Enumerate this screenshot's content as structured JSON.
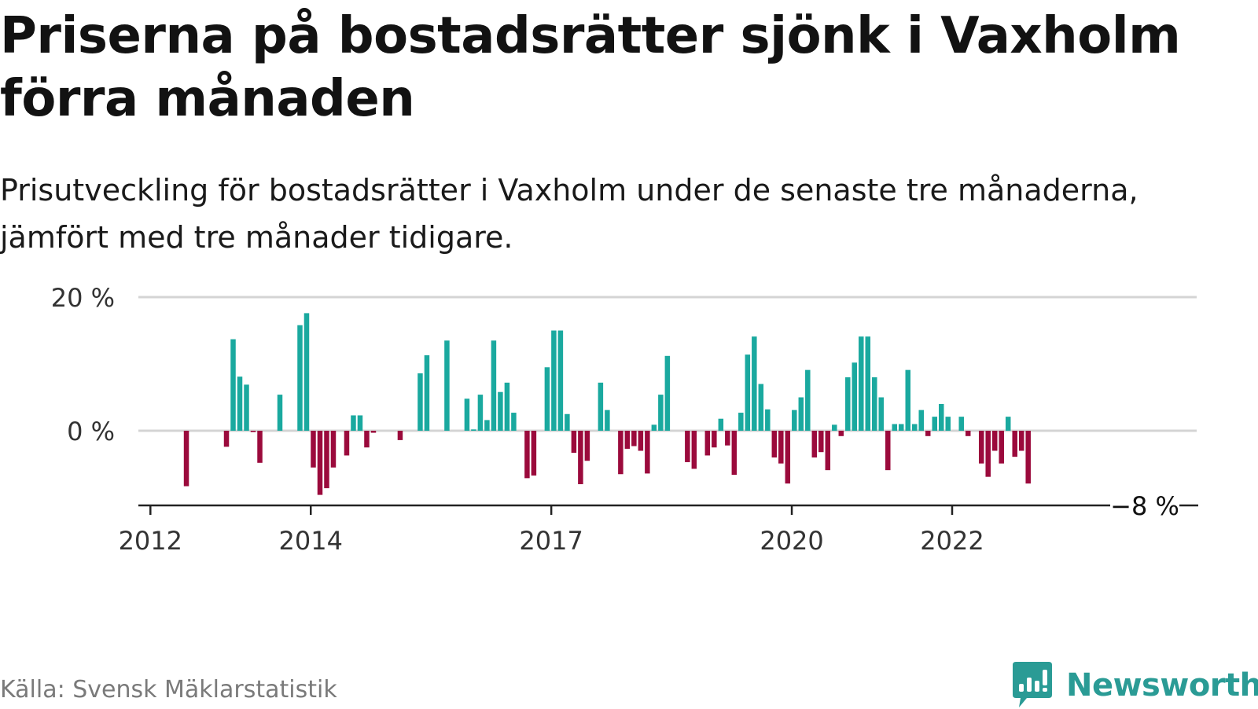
{
  "header": {
    "title": "Priserna på bostadsrätter sjönk i Vaxholm förra månaden",
    "subtitle": "Prisutveckling för bostadsrätter i Vaxholm under de senaste tre månaderna, jämfört med tre månader tidigare."
  },
  "footer": {
    "source": "Källa: Svensk Mäklarstatistik",
    "brand": "Newsworthy"
  },
  "colors": {
    "positive": "#1aa99f",
    "negative": "#9b0a3c",
    "grid": "#d4d4d4",
    "axis": "#222222",
    "brand": "#2a9b95"
  },
  "chart_data": {
    "type": "bar",
    "title": "Priserna på bostadsrätter sjönk i Vaxholm förra månaden",
    "subtitle": "Prisutveckling för bostadsrätter i Vaxholm under de senaste tre månaderna, jämfört med tre månader tidigare.",
    "xlabel": "",
    "ylabel": "",
    "unit": "%",
    "y_ticks": [
      {
        "value": 20,
        "label": "20 %"
      },
      {
        "value": 0,
        "label": "0 %"
      }
    ],
    "x_ticks": [
      {
        "value": 2012,
        "label": "2012"
      },
      {
        "value": 2014,
        "label": "2014"
      },
      {
        "value": 2017,
        "label": "2017"
      },
      {
        "value": 2020,
        "label": "2020"
      },
      {
        "value": 2022,
        "label": "2022"
      }
    ],
    "xlim": [
      2011.85,
      2025.05
    ],
    "ylim": [
      -11,
      20
    ],
    "grid": true,
    "annotation": {
      "value": -8,
      "label": "−8 %"
    },
    "bars": [
      {
        "date": "2012-06",
        "value": -8.3
      },
      {
        "date": "2012-12",
        "value": -2.4
      },
      {
        "date": "2013-01",
        "value": 13.7
      },
      {
        "date": "2013-02",
        "value": 8.1
      },
      {
        "date": "2013-03",
        "value": 6.9
      },
      {
        "date": "2013-04",
        "value": -0.2
      },
      {
        "date": "2013-05",
        "value": -4.8
      },
      {
        "date": "2013-08",
        "value": 5.4
      },
      {
        "date": "2013-11",
        "value": 15.8
      },
      {
        "date": "2013-12",
        "value": 17.6
      },
      {
        "date": "2014-01",
        "value": -5.5
      },
      {
        "date": "2014-02",
        "value": -9.6
      },
      {
        "date": "2014-03",
        "value": -8.6
      },
      {
        "date": "2014-04",
        "value": -5.5
      },
      {
        "date": "2014-06",
        "value": -3.7
      },
      {
        "date": "2014-07",
        "value": 2.3
      },
      {
        "date": "2014-08",
        "value": 2.3
      },
      {
        "date": "2014-09",
        "value": -2.5
      },
      {
        "date": "2014-10",
        "value": -0.3
      },
      {
        "date": "2015-02",
        "value": -1.4
      },
      {
        "date": "2015-05",
        "value": 8.6
      },
      {
        "date": "2015-06",
        "value": 11.3
      },
      {
        "date": "2015-09",
        "value": 13.5
      },
      {
        "date": "2015-12",
        "value": 4.8
      },
      {
        "date": "2016-01",
        "value": 0.2
      },
      {
        "date": "2016-02",
        "value": 5.4
      },
      {
        "date": "2016-03",
        "value": 1.6
      },
      {
        "date": "2016-04",
        "value": 13.5
      },
      {
        "date": "2016-05",
        "value": 5.8
      },
      {
        "date": "2016-06",
        "value": 7.2
      },
      {
        "date": "2016-07",
        "value": 2.7
      },
      {
        "date": "2016-09",
        "value": -7.1
      },
      {
        "date": "2016-10",
        "value": -6.7
      },
      {
        "date": "2016-12",
        "value": 9.5
      },
      {
        "date": "2017-01",
        "value": 15.0
      },
      {
        "date": "2017-02",
        "value": 15.0
      },
      {
        "date": "2017-03",
        "value": 2.5
      },
      {
        "date": "2017-04",
        "value": -3.3
      },
      {
        "date": "2017-05",
        "value": -8.0
      },
      {
        "date": "2017-06",
        "value": -4.5
      },
      {
        "date": "2017-08",
        "value": 7.2
      },
      {
        "date": "2017-09",
        "value": 3.1
      },
      {
        "date": "2017-11",
        "value": -6.5
      },
      {
        "date": "2017-12",
        "value": -2.7
      },
      {
        "date": "2018-01",
        "value": -2.3
      },
      {
        "date": "2018-02",
        "value": -3.0
      },
      {
        "date": "2018-03",
        "value": -6.4
      },
      {
        "date": "2018-04",
        "value": 0.9
      },
      {
        "date": "2018-05",
        "value": 5.4
      },
      {
        "date": "2018-06",
        "value": 11.2
      },
      {
        "date": "2018-09",
        "value": -4.7
      },
      {
        "date": "2018-10",
        "value": -5.7
      },
      {
        "date": "2018-12",
        "value": -3.7
      },
      {
        "date": "2019-01",
        "value": -2.5
      },
      {
        "date": "2019-02",
        "value": 1.8
      },
      {
        "date": "2019-03",
        "value": -2.2
      },
      {
        "date": "2019-04",
        "value": -6.6
      },
      {
        "date": "2019-05",
        "value": 2.7
      },
      {
        "date": "2019-06",
        "value": 11.4
      },
      {
        "date": "2019-07",
        "value": 14.1
      },
      {
        "date": "2019-08",
        "value": 7.0
      },
      {
        "date": "2019-09",
        "value": 3.2
      },
      {
        "date": "2019-10",
        "value": -4.0
      },
      {
        "date": "2019-11",
        "value": -4.9
      },
      {
        "date": "2019-12",
        "value": -7.9
      },
      {
        "date": "2020-01",
        "value": 3.1
      },
      {
        "date": "2020-02",
        "value": 5.0
      },
      {
        "date": "2020-03",
        "value": 9.1
      },
      {
        "date": "2020-04",
        "value": -4.0
      },
      {
        "date": "2020-05",
        "value": -3.2
      },
      {
        "date": "2020-06",
        "value": -5.9
      },
      {
        "date": "2020-07",
        "value": 0.9
      },
      {
        "date": "2020-08",
        "value": -0.8
      },
      {
        "date": "2020-09",
        "value": 8.0
      },
      {
        "date": "2020-10",
        "value": 10.2
      },
      {
        "date": "2020-11",
        "value": 14.1
      },
      {
        "date": "2020-12",
        "value": 14.1
      },
      {
        "date": "2021-01",
        "value": 8.0
      },
      {
        "date": "2021-02",
        "value": 5.0
      },
      {
        "date": "2021-03",
        "value": -5.9
      },
      {
        "date": "2021-04",
        "value": 1.0
      },
      {
        "date": "2021-05",
        "value": 1.0
      },
      {
        "date": "2021-06",
        "value": 9.1
      },
      {
        "date": "2021-07",
        "value": 1.0
      },
      {
        "date": "2021-08",
        "value": 3.1
      },
      {
        "date": "2021-09",
        "value": -0.8
      },
      {
        "date": "2021-10",
        "value": 2.1
      },
      {
        "date": "2021-11",
        "value": 4.0
      },
      {
        "date": "2021-12",
        "value": 2.1
      },
      {
        "date": "2022-02",
        "value": 2.1
      },
      {
        "date": "2022-03",
        "value": -0.8
      },
      {
        "date": "2022-05",
        "value": -4.9
      },
      {
        "date": "2022-06",
        "value": -6.9
      },
      {
        "date": "2022-07",
        "value": -3.0
      },
      {
        "date": "2022-08",
        "value": -4.9
      },
      {
        "date": "2022-09",
        "value": 2.1
      },
      {
        "date": "2022-10",
        "value": -3.9
      },
      {
        "date": "2022-11",
        "value": -3.0
      },
      {
        "date": "2022-12",
        "value": -7.9
      }
    ]
  }
}
